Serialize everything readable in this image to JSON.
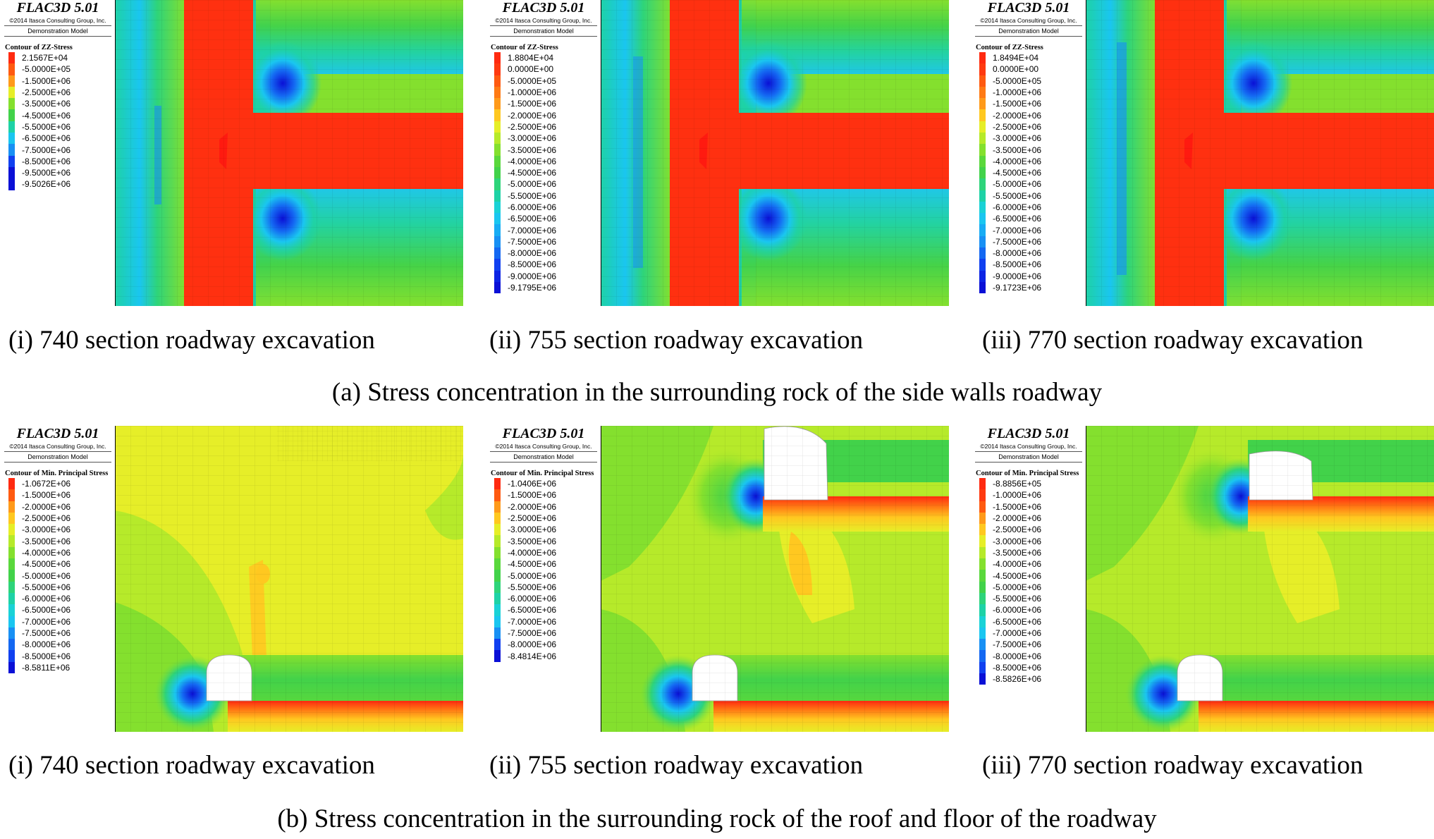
{
  "software_title": "FLAC3D 5.01",
  "copyright": "©2014 Itasca Consulting Group, Inc.",
  "model_name": "Demonstration Model",
  "colors": {
    "red": "#ff2a10",
    "orange_red": "#ff5a10",
    "orange": "#ff9a1a",
    "amber": "#ffc820",
    "yellow": "#e6ee28",
    "yellow_green": "#b6ea2a",
    "light_green": "#84e02e",
    "green": "#42d24a",
    "teal": "#1ed2a6",
    "cyan": "#1ac6f0",
    "sky": "#1890f4",
    "blue": "#1040f0",
    "dark_blue": "#0a10d6"
  },
  "panels_a": [
    {
      "contour_title": "Contour of ZZ-Stress",
      "legend": [
        {
          "value": "2.1567E+04",
          "color": "#ff2a10"
        },
        {
          "value": "-5.0000E+05",
          "color": "#ff5a10"
        },
        {
          "value": "-1.5000E+06",
          "color": "#ff9a1a"
        },
        {
          "value": "-2.5000E+06",
          "color": "#e6ee28"
        },
        {
          "value": "-3.5000E+06",
          "color": "#84e02e"
        },
        {
          "value": "-4.5000E+06",
          "color": "#42d24a"
        },
        {
          "value": "-5.5000E+06",
          "color": "#1ed2a6"
        },
        {
          "value": "-6.5000E+06",
          "color": "#1ac6f0"
        },
        {
          "value": "-7.5000E+06",
          "color": "#1890f4"
        },
        {
          "value": "-8.5000E+06",
          "color": "#1040f0"
        },
        {
          "value": "-9.5000E+06",
          "color": "#0a10d6"
        },
        {
          "value": "-9.5026E+06",
          "color": "#0a10d6"
        }
      ],
      "caption": "(i) 740 section roadway excavation"
    },
    {
      "contour_title": "Contour of ZZ-Stress",
      "legend": [
        {
          "value": "1.8804E+04",
          "color": "#ff2a10"
        },
        {
          "value": "0.0000E+00",
          "color": "#ff3a10"
        },
        {
          "value": "-5.0000E+05",
          "color": "#ff5a10"
        },
        {
          "value": "-1.0000E+06",
          "color": "#ff7a14"
        },
        {
          "value": "-1.5000E+06",
          "color": "#ff9a1a"
        },
        {
          "value": "-2.0000E+06",
          "color": "#ffc820"
        },
        {
          "value": "-2.5000E+06",
          "color": "#e6ee28"
        },
        {
          "value": "-3.0000E+06",
          "color": "#b6ea2a"
        },
        {
          "value": "-3.5000E+06",
          "color": "#84e02e"
        },
        {
          "value": "-4.0000E+06",
          "color": "#5ad83c"
        },
        {
          "value": "-4.5000E+06",
          "color": "#42d24a"
        },
        {
          "value": "-5.0000E+06",
          "color": "#2ed47a"
        },
        {
          "value": "-5.5000E+06",
          "color": "#1ed2a6"
        },
        {
          "value": "-6.0000E+06",
          "color": "#1ad2d6"
        },
        {
          "value": "-6.5000E+06",
          "color": "#1ac6f0"
        },
        {
          "value": "-7.0000E+06",
          "color": "#18acf4"
        },
        {
          "value": "-7.5000E+06",
          "color": "#1890f4"
        },
        {
          "value": "-8.0000E+06",
          "color": "#1468f2"
        },
        {
          "value": "-8.5000E+06",
          "color": "#1040f0"
        },
        {
          "value": "-9.0000E+06",
          "color": "#0c24e4"
        },
        {
          "value": "-9.1795E+06",
          "color": "#0a10d6"
        }
      ],
      "caption": "(ii) 755 section roadway excavation"
    },
    {
      "contour_title": "Contour of ZZ-Stress",
      "legend": [
        {
          "value": "1.8494E+04",
          "color": "#ff2a10"
        },
        {
          "value": "0.0000E+00",
          "color": "#ff3a10"
        },
        {
          "value": "-5.0000E+05",
          "color": "#ff5a10"
        },
        {
          "value": "-1.0000E+06",
          "color": "#ff7a14"
        },
        {
          "value": "-1.5000E+06",
          "color": "#ff9a1a"
        },
        {
          "value": "-2.0000E+06",
          "color": "#ffc820"
        },
        {
          "value": "-2.5000E+06",
          "color": "#e6ee28"
        },
        {
          "value": "-3.0000E+06",
          "color": "#b6ea2a"
        },
        {
          "value": "-3.5000E+06",
          "color": "#84e02e"
        },
        {
          "value": "-4.0000E+06",
          "color": "#5ad83c"
        },
        {
          "value": "-4.5000E+06",
          "color": "#42d24a"
        },
        {
          "value": "-5.0000E+06",
          "color": "#2ed47a"
        },
        {
          "value": "-5.5000E+06",
          "color": "#1ed2a6"
        },
        {
          "value": "-6.0000E+06",
          "color": "#1ad2d6"
        },
        {
          "value": "-6.5000E+06",
          "color": "#1ac6f0"
        },
        {
          "value": "-7.0000E+06",
          "color": "#18acf4"
        },
        {
          "value": "-7.5000E+06",
          "color": "#1890f4"
        },
        {
          "value": "-8.0000E+06",
          "color": "#1468f2"
        },
        {
          "value": "-8.5000E+06",
          "color": "#1040f0"
        },
        {
          "value": "-9.0000E+06",
          "color": "#0c24e4"
        },
        {
          "value": "-9.1723E+06",
          "color": "#0a10d6"
        }
      ],
      "caption": "(iii) 770 section roadway excavation"
    }
  ],
  "caption_a": "(a) Stress concentration in the surrounding rock of the side walls roadway",
  "panels_b": [
    {
      "contour_title": "Contour of Min. Principal Stress",
      "legend": [
        {
          "value": "-1.0672E+06",
          "color": "#ff2a10"
        },
        {
          "value": "-1.5000E+06",
          "color": "#ff5a10"
        },
        {
          "value": "-2.0000E+06",
          "color": "#ff9a1a"
        },
        {
          "value": "-2.5000E+06",
          "color": "#ffc820"
        },
        {
          "value": "-3.0000E+06",
          "color": "#e6ee28"
        },
        {
          "value": "-3.5000E+06",
          "color": "#b6ea2a"
        },
        {
          "value": "-4.0000E+06",
          "color": "#84e02e"
        },
        {
          "value": "-4.5000E+06",
          "color": "#5ad83c"
        },
        {
          "value": "-5.0000E+06",
          "color": "#42d24a"
        },
        {
          "value": "-5.5000E+06",
          "color": "#2ed47a"
        },
        {
          "value": "-6.0000E+06",
          "color": "#1ed2a6"
        },
        {
          "value": "-6.5000E+06",
          "color": "#1ad2d6"
        },
        {
          "value": "-7.0000E+06",
          "color": "#1ac6f0"
        },
        {
          "value": "-7.5000E+06",
          "color": "#1890f4"
        },
        {
          "value": "-8.0000E+06",
          "color": "#1468f2"
        },
        {
          "value": "-8.5000E+06",
          "color": "#1040f0"
        },
        {
          "value": "-8.5811E+06",
          "color": "#0a10d6"
        }
      ],
      "caption": "(i) 740 section roadway excavation"
    },
    {
      "contour_title": "Contour of Min. Principal Stress",
      "legend": [
        {
          "value": "-1.0406E+06",
          "color": "#ff2a10"
        },
        {
          "value": "-1.5000E+06",
          "color": "#ff5a10"
        },
        {
          "value": "-2.0000E+06",
          "color": "#ff9a1a"
        },
        {
          "value": "-2.5000E+06",
          "color": "#ffc820"
        },
        {
          "value": "-3.0000E+06",
          "color": "#e6ee28"
        },
        {
          "value": "-3.5000E+06",
          "color": "#b6ea2a"
        },
        {
          "value": "-4.0000E+06",
          "color": "#84e02e"
        },
        {
          "value": "-4.5000E+06",
          "color": "#5ad83c"
        },
        {
          "value": "-5.0000E+06",
          "color": "#42d24a"
        },
        {
          "value": "-5.5000E+06",
          "color": "#2ed47a"
        },
        {
          "value": "-6.0000E+06",
          "color": "#1ed2a6"
        },
        {
          "value": "-6.5000E+06",
          "color": "#1ad2d6"
        },
        {
          "value": "-7.0000E+06",
          "color": "#1ac6f0"
        },
        {
          "value": "-7.5000E+06",
          "color": "#1890f4"
        },
        {
          "value": "-8.0000E+06",
          "color": "#1040f0"
        },
        {
          "value": "-8.4814E+06",
          "color": "#0a10d6"
        }
      ],
      "caption": "(ii) 755 section roadway excavation"
    },
    {
      "contour_title": "Contour of Min. Principal Stress",
      "legend": [
        {
          "value": "-8.8856E+05",
          "color": "#ff2a10"
        },
        {
          "value": "-1.0000E+06",
          "color": "#ff3a10"
        },
        {
          "value": "-1.5000E+06",
          "color": "#ff5a10"
        },
        {
          "value": "-2.0000E+06",
          "color": "#ff9a1a"
        },
        {
          "value": "-2.5000E+06",
          "color": "#ffc820"
        },
        {
          "value": "-3.0000E+06",
          "color": "#e6ee28"
        },
        {
          "value": "-3.5000E+06",
          "color": "#b6ea2a"
        },
        {
          "value": "-4.0000E+06",
          "color": "#84e02e"
        },
        {
          "value": "-4.5000E+06",
          "color": "#5ad83c"
        },
        {
          "value": "-5.0000E+06",
          "color": "#42d24a"
        },
        {
          "value": "-5.5000E+06",
          "color": "#2ed47a"
        },
        {
          "value": "-6.0000E+06",
          "color": "#1ed2a6"
        },
        {
          "value": "-6.5000E+06",
          "color": "#1ad2d6"
        },
        {
          "value": "-7.0000E+06",
          "color": "#1ac6f0"
        },
        {
          "value": "-7.5000E+06",
          "color": "#1890f4"
        },
        {
          "value": "-8.0000E+06",
          "color": "#1468f2"
        },
        {
          "value": "-8.5000E+06",
          "color": "#1040f0"
        },
        {
          "value": "-8.5826E+06",
          "color": "#0a10d6"
        }
      ],
      "caption": "(iii) 770 section roadway excavation"
    }
  ],
  "caption_b": "(b) Stress concentration in the surrounding rock of the roof and floor of the roadway"
}
